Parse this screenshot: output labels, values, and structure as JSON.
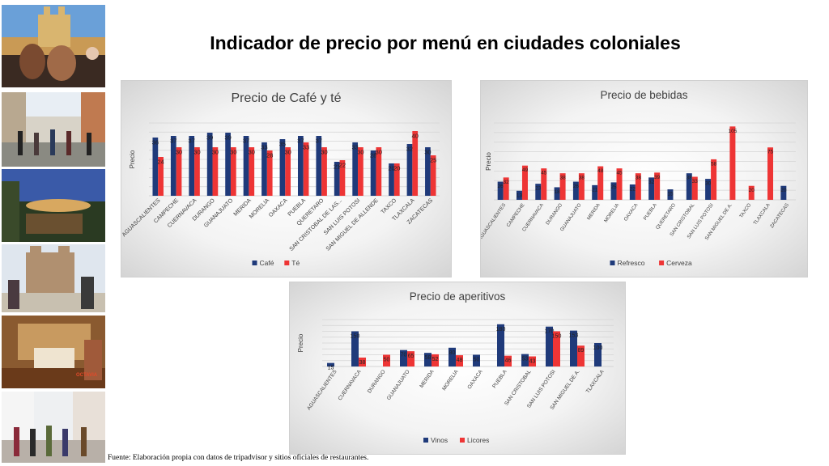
{
  "slide": {
    "title": "Indicador de precio por menú en ciudades coloniales",
    "source": "Fuente: Elaboración propia con datos de tripadvisor y sitios oficiales de restaurantes.",
    "photo_watermark": "OCTAVIA"
  },
  "colors": {
    "series_a": "#1f3a7a",
    "series_b": "#ee3535",
    "grid": "#d4d4d4"
  },
  "chart_data": [
    {
      "type": "bar",
      "title": "Precio de Café y té",
      "ylabel": "Precio",
      "xlabel": "",
      "ylim": [
        0,
        45
      ],
      "grid": true,
      "legend": "bottom",
      "categories": [
        "AGUASCALIENTES",
        "CAMPECHE",
        "CUERNAVACA",
        "DURANGO",
        "GUANAJUATO",
        "MERIDA",
        "MORELIA",
        "OAXACA",
        "PUEBLA",
        "QUERETARO",
        "SAN CRISTOBAL DE LAS...",
        "SAN LUIS POTOSI",
        "SAN MIGUEL DE ALLENDE",
        "TAXCO",
        "TLAXCALA",
        "ZACATECAS"
      ],
      "series": [
        {
          "name": "Café",
          "values": [
            36,
            37,
            37,
            39,
            39,
            37,
            33,
            35,
            37,
            37,
            21,
            33,
            28,
            20,
            32,
            30
          ]
        },
        {
          "name": "Té",
          "values": [
            24,
            30,
            30,
            30,
            30,
            30,
            28,
            30,
            33,
            30,
            22,
            30,
            30,
            20,
            40,
            25
          ]
        }
      ]
    },
    {
      "type": "bar",
      "title": "Precio de bebidas",
      "ylabel": "Precio",
      "xlabel": "",
      "ylim": [
        0,
        110
      ],
      "grid": true,
      "legend": "bottom",
      "categories": [
        "AGUASCALIENTES",
        "CAMPECHE",
        "CUERNAVACA",
        "DURANGO",
        "GUANAJUATO",
        "MERIDA",
        "MORELIA",
        "OAXACA",
        "PUEBLA",
        "QUERETARO",
        "SAN CRISTOBAL",
        "SAN LUIS POTOSI",
        "SAN MIGUEL DE A.",
        "TAXCO",
        "TLAXCALA",
        "ZACATECAS"
      ],
      "series": [
        {
          "name": "Refresco",
          "values": [
            26,
            13,
            23,
            18,
            26,
            21,
            25,
            22,
            32,
            15,
            38,
            30,
            null,
            null,
            null,
            20
          ]
        },
        {
          "name": "Cerveza",
          "values": [
            32,
            49,
            45,
            38,
            38,
            48,
            45,
            38,
            39,
            null,
            33,
            58,
            105,
            20,
            75,
            null
          ]
        }
      ]
    },
    {
      "type": "bar",
      "title": "Precio de aperitivos",
      "ylabel": "Precio",
      "xlabel": "",
      "ylim": [
        0,
        200
      ],
      "grid": true,
      "legend": "bottom",
      "categories": [
        "AGUASCALIENTES",
        "CUERNAVACA",
        "DURANGO",
        "GUANAJUATO",
        "MERIDA",
        "MORELIA",
        "OAXACA",
        "PUEBLA",
        "SAN CRISTOBAL",
        "SAN LUIS POTOSI",
        "SAN MIGUEL DE A.",
        "TLAXCALA"
      ],
      "series": [
        {
          "name": "Vinos",
          "values": [
            15,
            150,
            null,
            70,
            58,
            80,
            50,
            180,
            53,
            170,
            153,
            100
          ]
        },
        {
          "name": "Licores",
          "values": [
            null,
            38,
            50,
            65,
            52,
            48,
            null,
            46,
            43,
            150,
            89,
            null
          ]
        }
      ]
    }
  ]
}
